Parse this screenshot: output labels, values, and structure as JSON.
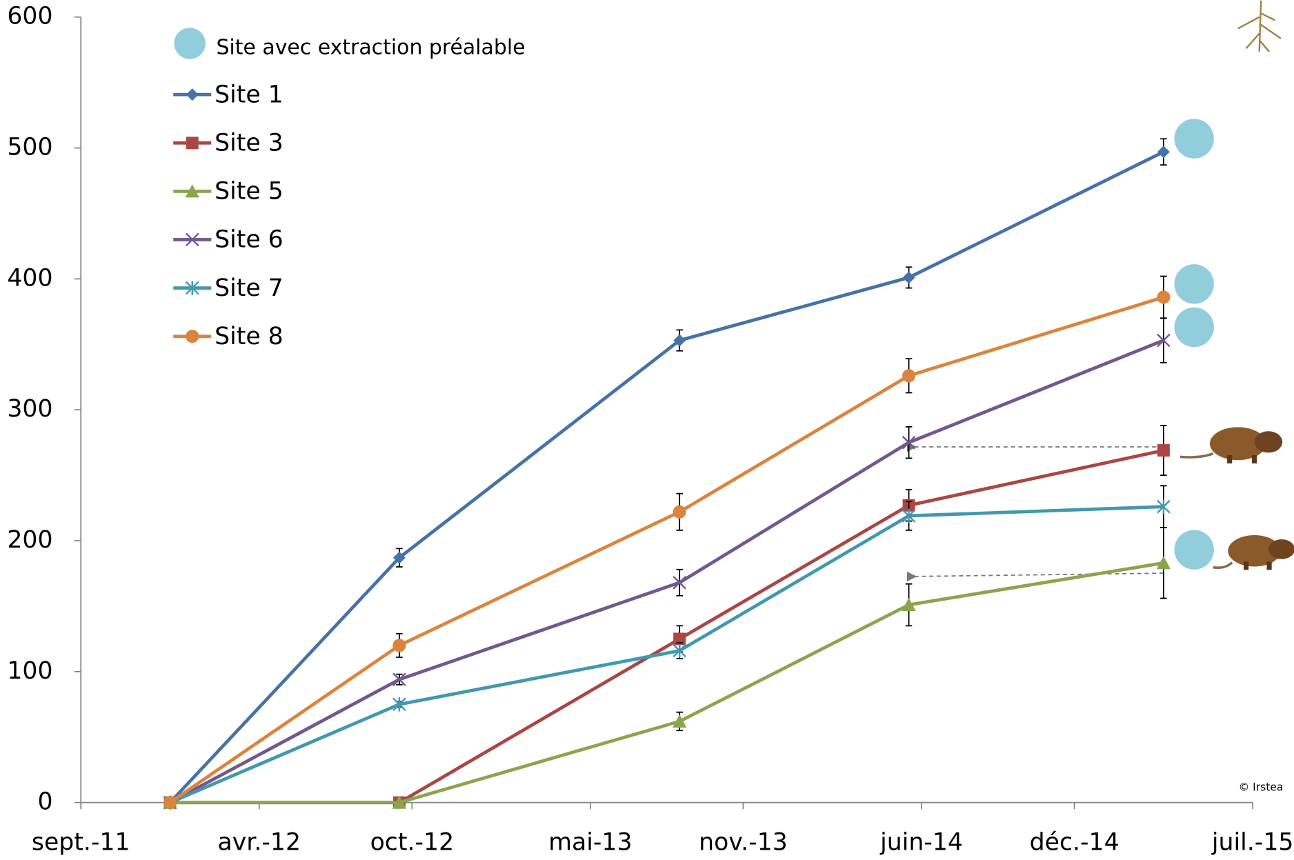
{
  "chart_data": {
    "type": "line",
    "x": [
      "2011-12",
      "2012-09",
      "2013-08",
      "2014-05",
      "2015-03"
    ],
    "xlim": [
      "2011-09",
      "2015-07"
    ],
    "xticks": [
      {
        "value": "2011-09",
        "label": "sept.-11"
      },
      {
        "value": "2012-04",
        "label": "avr.-12"
      },
      {
        "value": "2012-10",
        "label": "oct.-12"
      },
      {
        "value": "2013-05",
        "label": "mai-13"
      },
      {
        "value": "2013-11",
        "label": "nov.-13"
      },
      {
        "value": "2014-06",
        "label": "juin-14"
      },
      {
        "value": "2014-12",
        "label": "déc.-14"
      },
      {
        "value": "2015-07",
        "label": "juil.-15"
      }
    ],
    "ylim": [
      0,
      600
    ],
    "yticks": [
      0,
      100,
      200,
      300,
      400,
      500,
      600
    ],
    "grid": false,
    "extraction_label": "Site avec extraction préalable",
    "extraction_color": "#92cddc",
    "credit": "© Irstea",
    "series": [
      {
        "name": "Site 1",
        "color": "#4572a7",
        "marker": "diamond",
        "extraction": true,
        "values": [
          0,
          187,
          353,
          401,
          497
        ],
        "errors": [
          0,
          7,
          8,
          8,
          10
        ]
      },
      {
        "name": "Site 3",
        "color": "#aa4643",
        "marker": "square",
        "extraction": false,
        "values": [
          0,
          0,
          125,
          227,
          269
        ],
        "errors": [
          0,
          0,
          10,
          12,
          19
        ]
      },
      {
        "name": "Site 5",
        "color": "#89a54e",
        "marker": "triangle",
        "extraction": true,
        "values": [
          0,
          0,
          62,
          151,
          183
        ],
        "errors": [
          0,
          0,
          7,
          16,
          27
        ]
      },
      {
        "name": "Site 6",
        "color": "#71588f",
        "marker": "x",
        "extraction": true,
        "values": [
          0,
          94,
          168,
          275,
          353
        ],
        "errors": [
          0,
          4,
          10,
          12,
          17
        ]
      },
      {
        "name": "Site 7",
        "color": "#4198af",
        "marker": "star",
        "extraction": false,
        "values": [
          0,
          75,
          116,
          219,
          226
        ],
        "errors": [
          0,
          2,
          6,
          11,
          16
        ]
      },
      {
        "name": "Site 8",
        "color": "#db843d",
        "marker": "circle",
        "extraction": true,
        "values": [
          0,
          120,
          222,
          326,
          386
        ],
        "errors": [
          0,
          9,
          14,
          13,
          16
        ]
      }
    ]
  }
}
